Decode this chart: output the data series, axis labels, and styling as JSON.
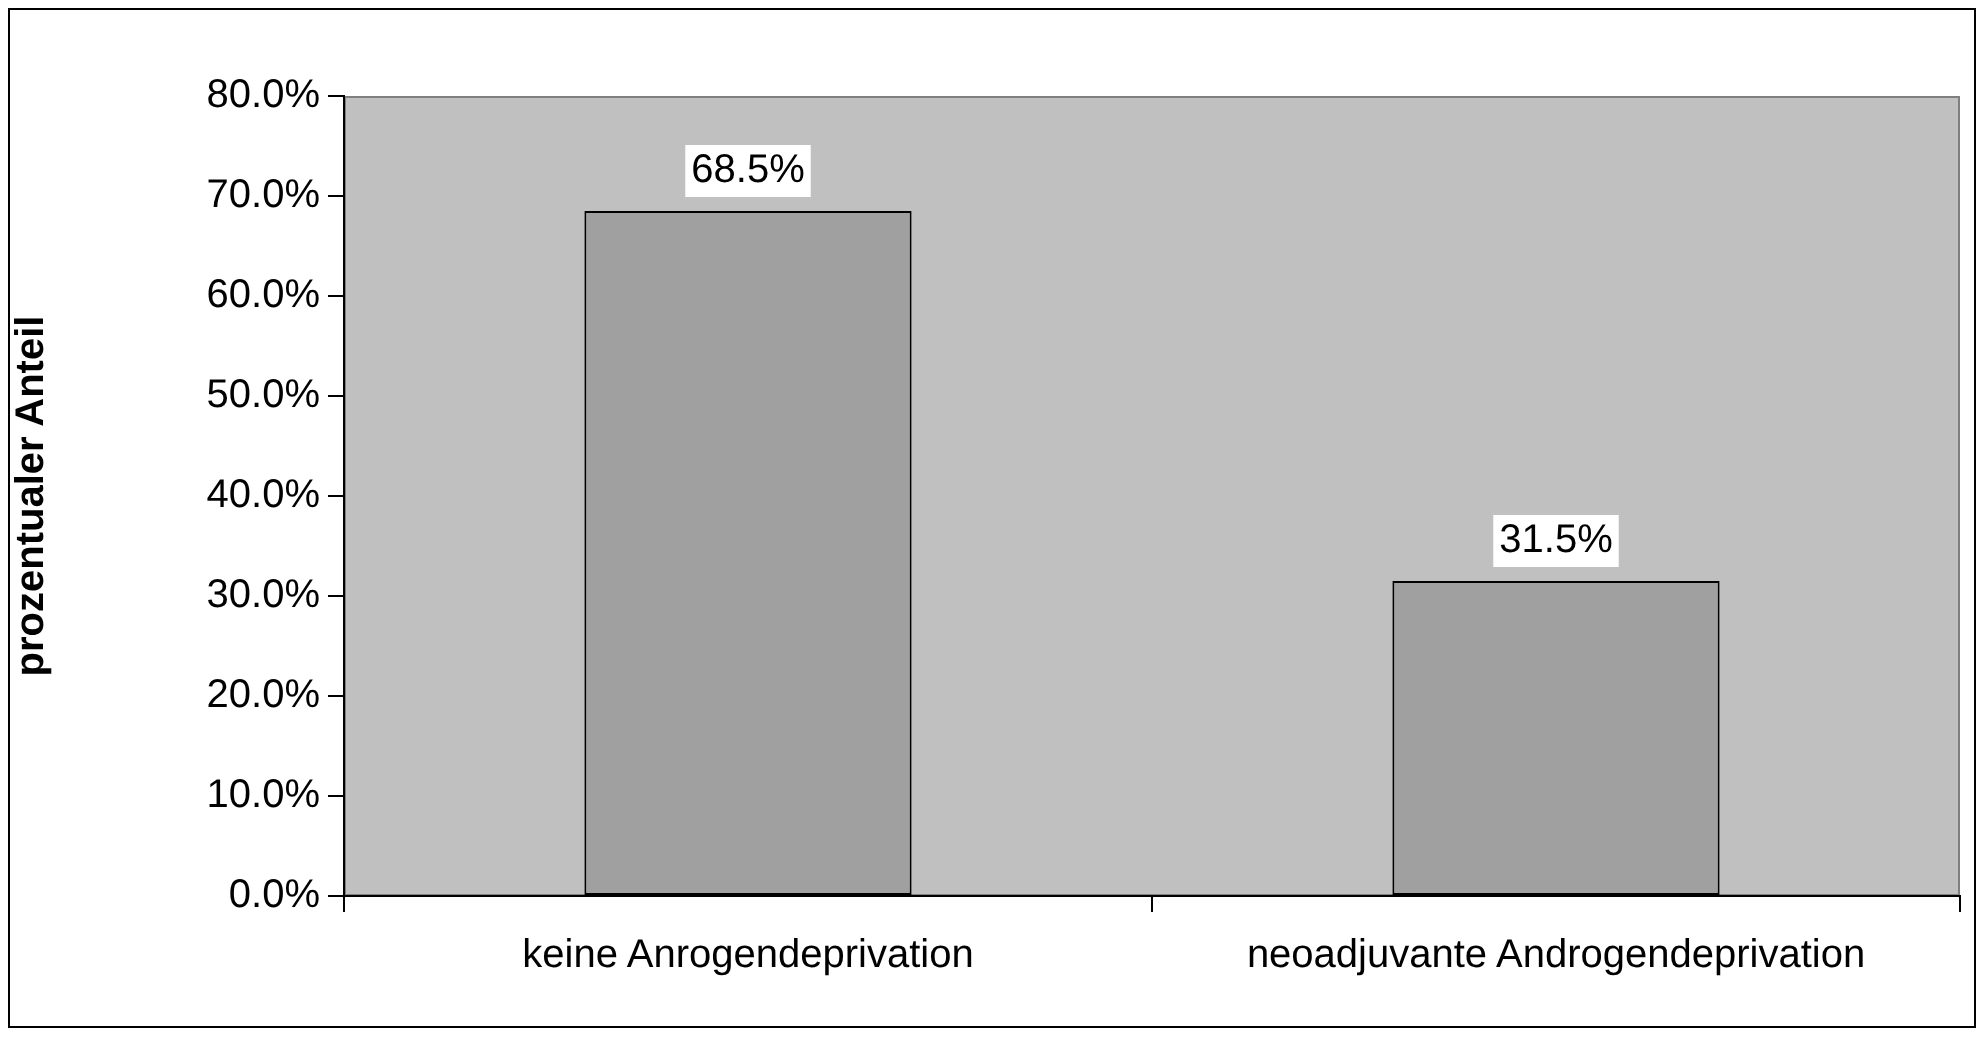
{
  "chart_data": {
    "type": "bar",
    "ylabel": "prozentualer Anteil",
    "categories": [
      "keine Anrogendeprivation",
      "neoadjuvante Androgendeprivation"
    ],
    "values": [
      68.5,
      31.5
    ],
    "value_labels": [
      "68.5%",
      "31.5%"
    ],
    "color": "#a0a0a0",
    "ylim": [
      0,
      80
    ],
    "yticks": [
      {
        "value": 0,
        "label": "0.0%"
      },
      {
        "value": 10,
        "label": "10.0%"
      },
      {
        "value": 20,
        "label": "20.0%"
      },
      {
        "value": 30,
        "label": "30.0%"
      },
      {
        "value": 40,
        "label": "40.0%"
      },
      {
        "value": 50,
        "label": "50.0%"
      },
      {
        "value": 60,
        "label": "60.0%"
      },
      {
        "value": 70,
        "label": "70.0%"
      },
      {
        "value": 80,
        "label": "80.0%"
      }
    ],
    "grid": false,
    "legend": false
  }
}
